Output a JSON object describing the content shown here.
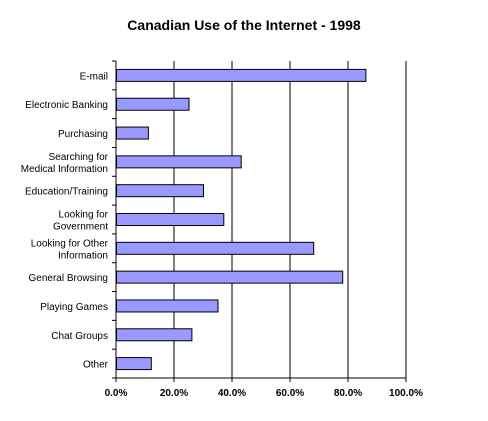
{
  "chart_data": {
    "type": "bar",
    "orientation": "horizontal",
    "title": "Canadian Use of the Internet - 1998",
    "xlabel": "",
    "ylabel": "",
    "xlim": [
      0,
      100
    ],
    "x_ticks": [
      0,
      20,
      40,
      60,
      80,
      100
    ],
    "x_tick_labels": [
      "0.0%",
      "20.0%",
      "40.0%",
      "60.0%",
      "80.0%",
      "100.0%"
    ],
    "grid": "vertical gridlines",
    "legend": "none",
    "categories": [
      [
        "E-mail"
      ],
      [
        "Electronic Banking"
      ],
      [
        "Purchasing"
      ],
      [
        "Searching for",
        "Medical Information"
      ],
      [
        "Education/Training"
      ],
      [
        "Looking for",
        "Government"
      ],
      [
        "Looking for Other",
        "Information"
      ],
      [
        "General Browsing"
      ],
      [
        "Playing Games"
      ],
      [
        "Chat Groups"
      ],
      [
        "Other"
      ]
    ],
    "values": [
      86,
      25,
      11,
      43,
      30,
      37,
      68,
      78,
      35,
      26,
      12
    ],
    "bar_color": "#9999ff",
    "bar_border_color": "#000000"
  }
}
